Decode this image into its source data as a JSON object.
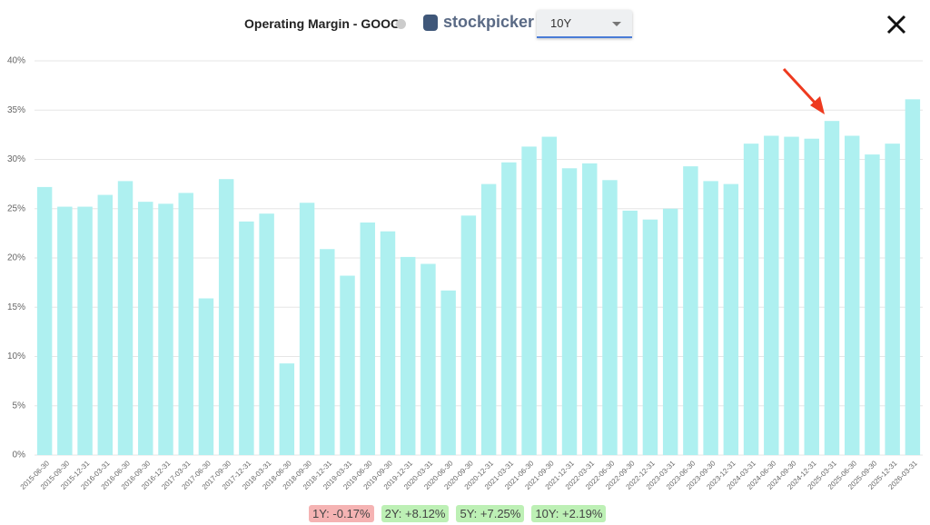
{
  "header": {
    "title": "Operating Margin - GOOG",
    "brand": "stockpicker",
    "period": "10Y"
  },
  "chart_data": {
    "type": "bar",
    "color": "#aef0f0",
    "categories": [
      "2015-06-30",
      "2015-09-30",
      "2015-12-31",
      "2016-03-31",
      "2016-06-30",
      "2016-09-30",
      "2016-12-31",
      "2017-03-31",
      "2017-06-30",
      "2017-09-30",
      "2017-12-31",
      "2018-03-31",
      "2018-06-30",
      "2018-09-30",
      "2018-12-31",
      "2019-03-31",
      "2019-06-30",
      "2019-09-30",
      "2019-12-31",
      "2020-03-31",
      "2020-06-30",
      "2020-09-30",
      "2020-12-31",
      "2021-03-31",
      "2021-06-30",
      "2021-09-30",
      "2021-12-31",
      "2022-03-31",
      "2022-06-30",
      "2022-09-30",
      "2022-12-31",
      "2023-03-31",
      "2023-06-30",
      "2023-09-30",
      "2023-12-31",
      "2024-03-31",
      "2024-06-30",
      "2024-09-30",
      "2024-12-31",
      "2025-03-31",
      "2025-06-30",
      "2025-09-30",
      "2025-12-31",
      "2026-03-31"
    ],
    "values": [
      27.2,
      25.2,
      25.2,
      26.4,
      27.8,
      25.7,
      25.5,
      26.6,
      15.9,
      28.0,
      23.7,
      24.5,
      9.3,
      25.6,
      20.9,
      18.2,
      23.6,
      22.7,
      20.1,
      19.4,
      16.7,
      24.3,
      27.5,
      29.7,
      31.3,
      32.3,
      29.1,
      29.6,
      27.9,
      24.8,
      23.9,
      25.0,
      29.3,
      27.8,
      27.5,
      31.6,
      32.4,
      32.3,
      32.1,
      33.9,
      32.4,
      30.5,
      31.6,
      36.1
    ],
    "ylim": [
      0,
      40
    ],
    "yticks": [
      {
        "value": 0,
        "label": "0%"
      },
      {
        "value": 5,
        "label": "5%"
      },
      {
        "value": 10,
        "label": "10%"
      },
      {
        "value": 15,
        "label": "15%"
      },
      {
        "value": 20,
        "label": "20%"
      },
      {
        "value": 25,
        "label": "25%"
      },
      {
        "value": 30,
        "label": "30%"
      },
      {
        "value": 35,
        "label": "35%"
      },
      {
        "value": 40,
        "label": "40%"
      }
    ],
    "grid": true
  },
  "badges": [
    {
      "text": "1Y: -0.17%",
      "color": "#f5b3b3"
    },
    {
      "text": "2Y: +8.12%",
      "color": "#bdf0b5"
    },
    {
      "text": "5Y: +7.25%",
      "color": "#bdf0b5"
    },
    {
      "text": "10Y: +2.19%",
      "color": "#bdf0b5"
    }
  ]
}
